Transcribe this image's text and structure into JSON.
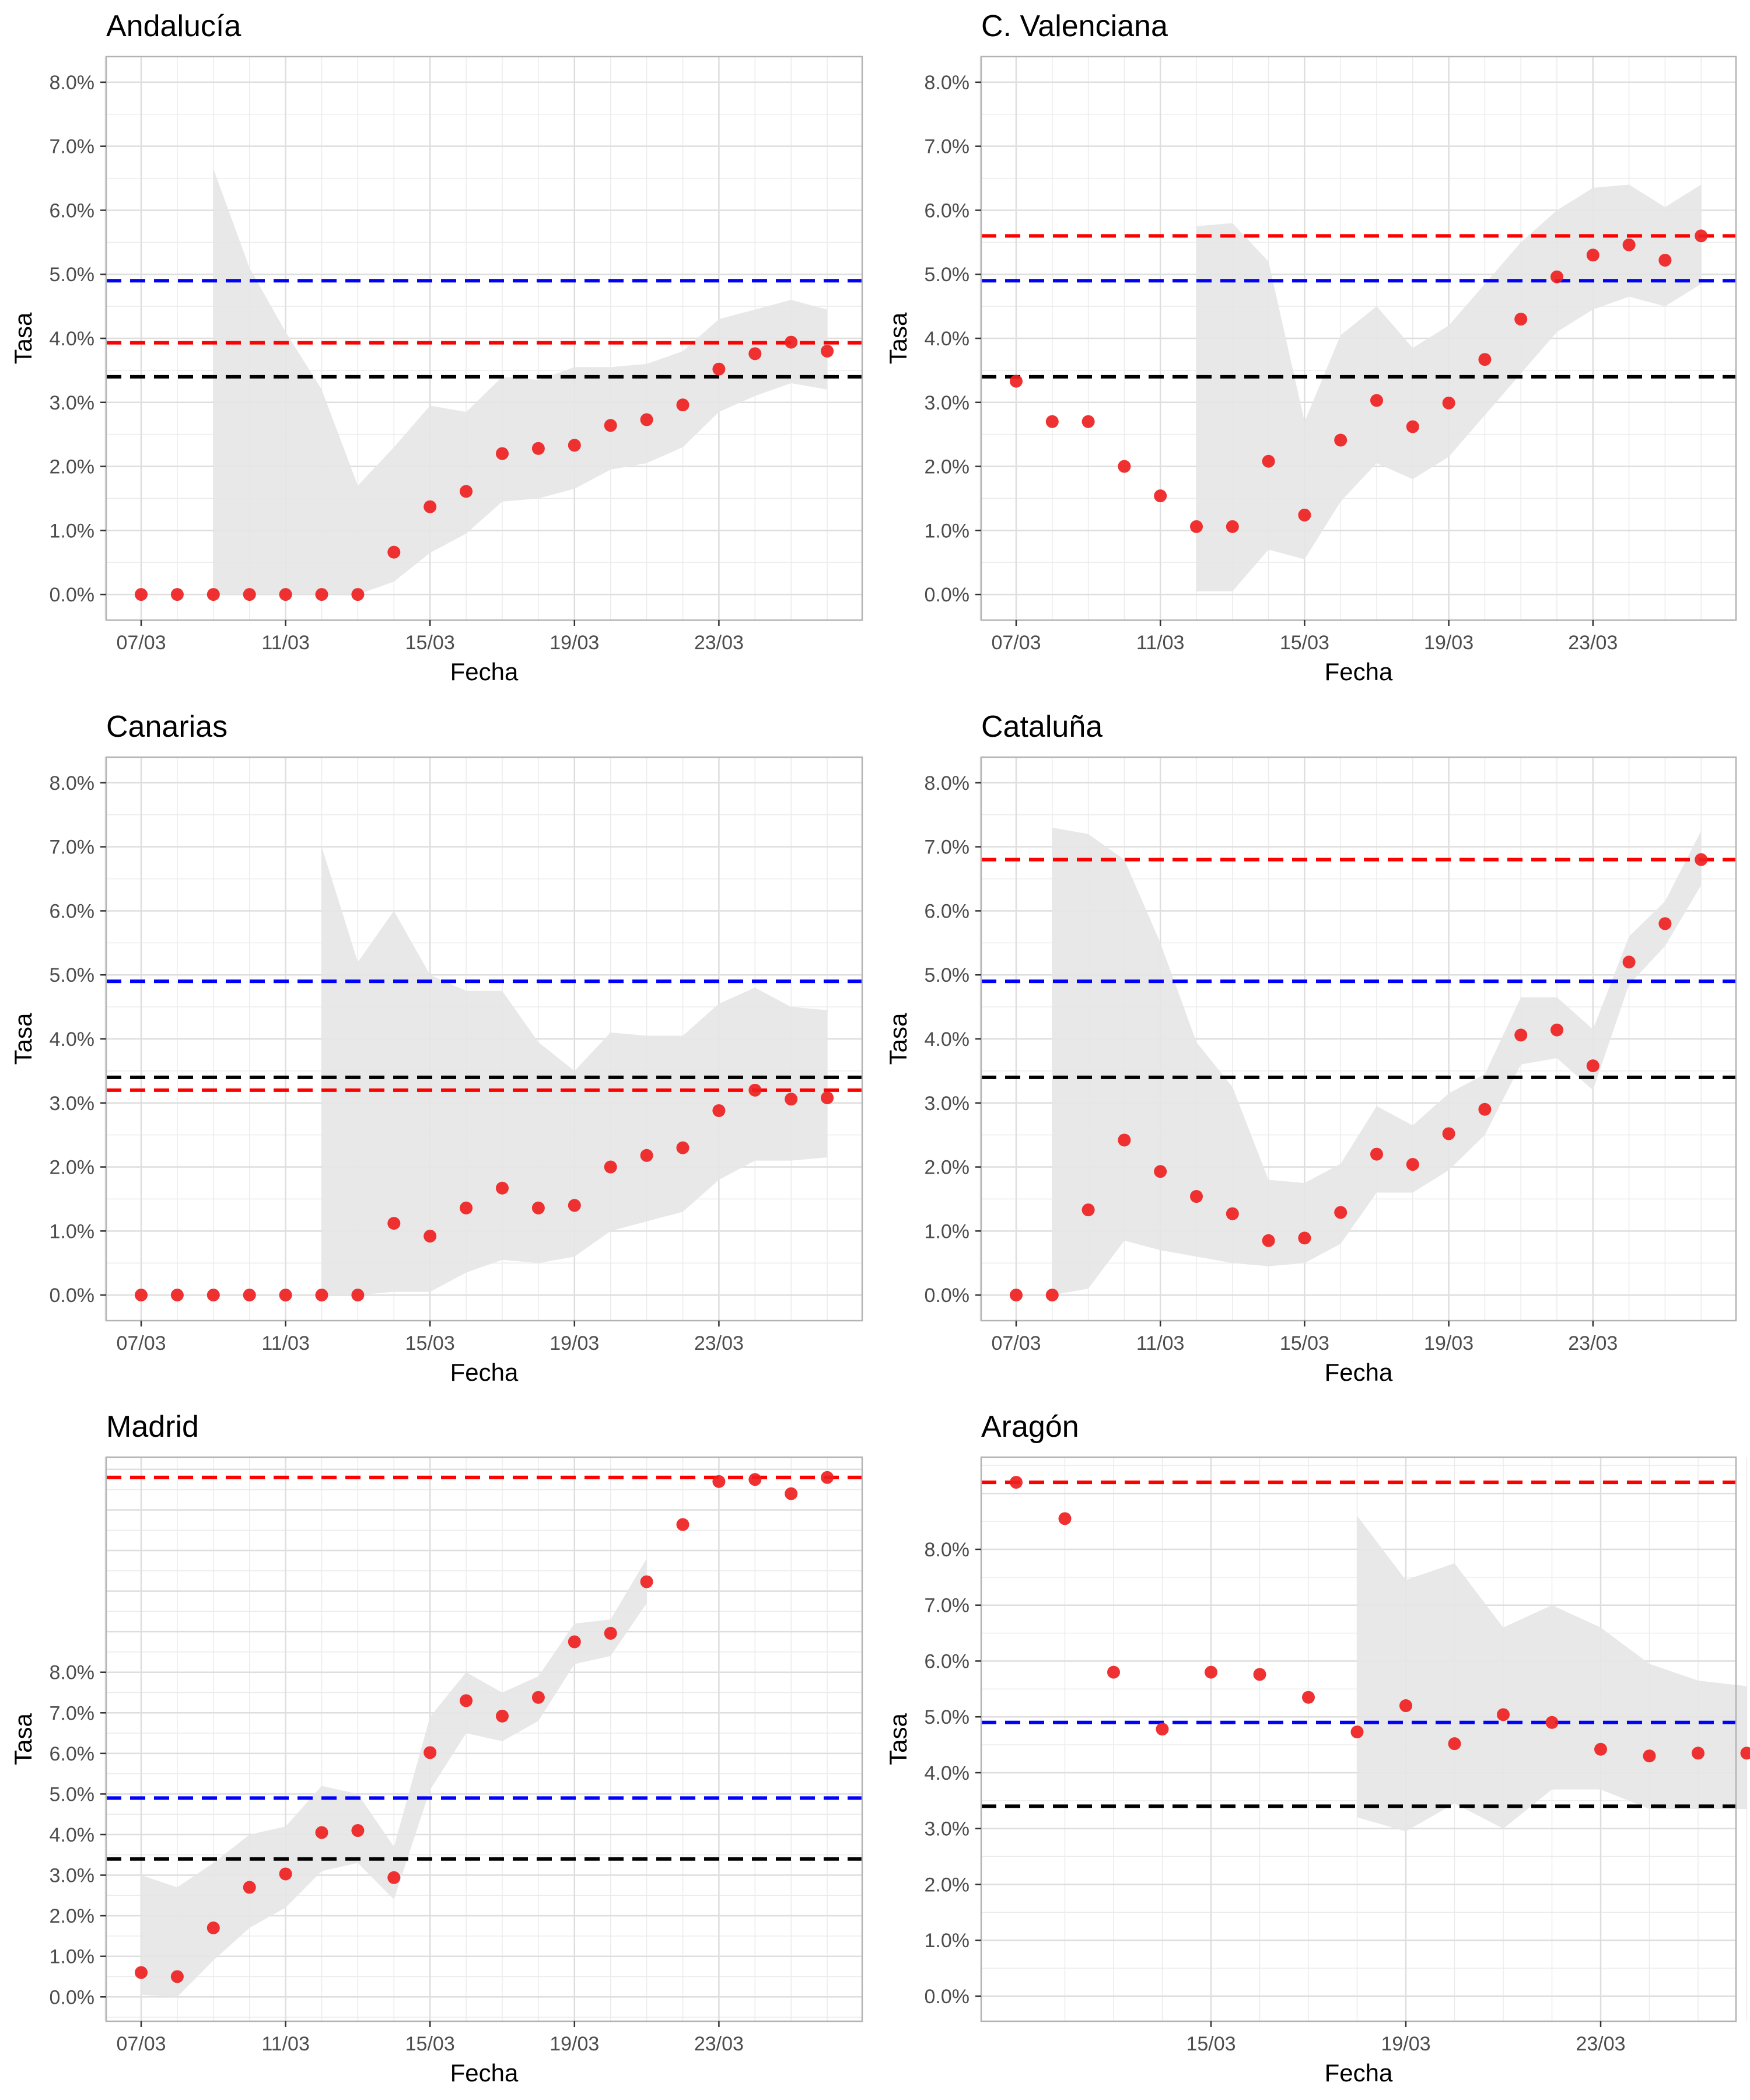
{
  "colors": {
    "reference_black": "#000000",
    "reference_blue": "#0000ff",
    "reference_red": "#ff0000",
    "points": "#ee2020",
    "band": "#e6e6e6",
    "grid": "#ebebeb",
    "panel_border": "#b3b3b3"
  },
  "reference_lines": {
    "black": 3.4,
    "blue": 4.9
  },
  "chart_data": [
    {
      "type": "scatter",
      "title": "Andalucía",
      "xlabel": "Fecha",
      "ylabel": "Tasa",
      "x_ticks": [
        "07/03",
        "11/03",
        "15/03",
        "19/03",
        "23/03"
      ],
      "y_ticks": [
        "0.0%",
        "1.0%",
        "2.0%",
        "3.0%",
        "4.0%",
        "5.0%",
        "6.0%",
        "7.0%",
        "8.0%"
      ],
      "ylim": [
        -0.4,
        8.4
      ],
      "grid": true,
      "region_rate": 3.93,
      "x_days": [
        7,
        8,
        9,
        10,
        11,
        12,
        13,
        14,
        15,
        16,
        17,
        18,
        19,
        20,
        21,
        22,
        23,
        24,
        25,
        26
      ],
      "values": [
        0,
        0,
        0,
        0,
        0,
        0,
        0,
        0.66,
        1.37,
        1.61,
        2.2,
        2.28,
        2.33,
        2.64,
        2.73,
        2.96,
        3.52,
        3.76,
        3.94,
        3.8
      ],
      "band": {
        "x_days": [
          9,
          10,
          11,
          12,
          13,
          14,
          15,
          16,
          17,
          18,
          19,
          20,
          21,
          22,
          23,
          24,
          25,
          26
        ],
        "upper": [
          6.65,
          5.1,
          4.1,
          3.2,
          1.7,
          2.3,
          2.95,
          2.85,
          3.4,
          3.35,
          3.55,
          3.55,
          3.6,
          3.8,
          4.3,
          4.45,
          4.6,
          4.45
        ],
        "lower": [
          0,
          0,
          0,
          0,
          0,
          0.2,
          0.65,
          0.95,
          1.45,
          1.5,
          1.65,
          1.95,
          2.05,
          2.3,
          2.85,
          3.1,
          3.3,
          3.2
        ]
      }
    },
    {
      "type": "scatter",
      "title": "C. Valenciana",
      "xlabel": "Fecha",
      "ylabel": "Tasa",
      "x_ticks": [
        "07/03",
        "11/03",
        "15/03",
        "19/03",
        "23/03"
      ],
      "y_ticks": [
        "0.0%",
        "1.0%",
        "2.0%",
        "3.0%",
        "4.0%",
        "5.0%",
        "6.0%",
        "7.0%",
        "8.0%"
      ],
      "ylim": [
        -0.4,
        8.4
      ],
      "grid": true,
      "region_rate": 5.6,
      "x_days": [
        7,
        8,
        9,
        10,
        11,
        12,
        13,
        14,
        15,
        16,
        17,
        18,
        19,
        20,
        21,
        22,
        23,
        24,
        25,
        26
      ],
      "values": [
        3.33,
        2.7,
        2.7,
        2.0,
        1.54,
        1.06,
        1.06,
        2.08,
        1.24,
        2.41,
        3.03,
        2.62,
        2.99,
        3.67,
        4.3,
        4.96,
        5.3,
        5.46,
        5.22,
        5.6
      ],
      "band": {
        "x_days": [
          12,
          13,
          14,
          15,
          16,
          17,
          18,
          19,
          20,
          21,
          22,
          23,
          24,
          25,
          26
        ],
        "upper": [
          5.75,
          5.8,
          5.2,
          2.7,
          4.05,
          4.5,
          3.85,
          4.2,
          4.85,
          5.5,
          6.0,
          6.35,
          6.4,
          6.05,
          6.4
        ],
        "lower": [
          0.05,
          0.05,
          0.7,
          0.55,
          1.45,
          2.05,
          1.8,
          2.15,
          2.8,
          3.45,
          4.1,
          4.45,
          4.65,
          4.5,
          4.85
        ]
      }
    },
    {
      "type": "scatter",
      "title": "Canarias",
      "xlabel": "Fecha",
      "ylabel": "Tasa",
      "x_ticks": [
        "07/03",
        "11/03",
        "15/03",
        "19/03",
        "23/03"
      ],
      "y_ticks": [
        "0.0%",
        "1.0%",
        "2.0%",
        "3.0%",
        "4.0%",
        "5.0%",
        "6.0%",
        "7.0%",
        "8.0%"
      ],
      "ylim": [
        -0.4,
        8.4
      ],
      "grid": true,
      "region_rate": 3.2,
      "x_days": [
        7,
        8,
        9,
        10,
        11,
        12,
        13,
        14,
        15,
        16,
        17,
        18,
        19,
        20,
        21,
        22,
        23,
        24,
        25,
        26
      ],
      "values": [
        0,
        0,
        0,
        0,
        0,
        0,
        0,
        1.12,
        0.92,
        1.36,
        1.67,
        1.36,
        1.4,
        2.0,
        2.18,
        2.3,
        2.88,
        3.2,
        3.06,
        3.08
      ],
      "band": {
        "x_days": [
          12,
          13,
          14,
          15,
          16,
          17,
          18,
          19,
          20,
          21,
          22,
          23,
          24,
          25,
          26
        ],
        "upper": [
          7.0,
          5.2,
          6.0,
          5.0,
          4.75,
          4.75,
          3.95,
          3.5,
          4.1,
          4.05,
          4.05,
          4.55,
          4.8,
          4.5,
          4.45
        ],
        "lower": [
          0,
          0,
          0.05,
          0.05,
          0.35,
          0.55,
          0.5,
          0.6,
          1.0,
          1.15,
          1.3,
          1.8,
          2.1,
          2.1,
          2.15
        ]
      }
    },
    {
      "type": "scatter",
      "title": "Cataluña",
      "xlabel": "Fecha",
      "ylabel": "Tasa",
      "x_ticks": [
        "07/03",
        "11/03",
        "15/03",
        "19/03",
        "23/03"
      ],
      "y_ticks": [
        "0.0%",
        "1.0%",
        "2.0%",
        "3.0%",
        "4.0%",
        "5.0%",
        "6.0%",
        "7.0%",
        "8.0%"
      ],
      "ylim": [
        -0.4,
        8.4
      ],
      "grid": true,
      "region_rate": 6.8,
      "x_days": [
        7,
        8,
        9,
        10,
        11,
        12,
        13,
        14,
        15,
        16,
        17,
        18,
        19,
        20,
        21,
        22,
        23,
        24,
        25,
        26
      ],
      "values": [
        0,
        0,
        1.33,
        2.42,
        1.93,
        1.54,
        1.27,
        0.85,
        0.89,
        1.29,
        2.2,
        2.04,
        2.52,
        2.9,
        4.06,
        4.14,
        3.58,
        5.2,
        5.8,
        6.8
      ],
      "band": {
        "x_days": [
          8,
          9,
          10,
          11,
          12,
          13,
          14,
          15,
          16,
          17,
          18,
          19,
          20,
          21,
          22,
          23,
          24,
          25,
          26
        ],
        "upper": [
          7.3,
          7.2,
          6.8,
          5.5,
          3.95,
          3.25,
          1.8,
          1.75,
          2.05,
          2.95,
          2.65,
          3.15,
          3.45,
          4.65,
          4.65,
          4.15,
          5.6,
          6.15,
          7.25
        ],
        "lower": [
          0,
          0.1,
          0.85,
          0.7,
          0.6,
          0.5,
          0.45,
          0.5,
          0.8,
          1.6,
          1.6,
          1.95,
          2.5,
          3.6,
          3.7,
          3.2,
          4.85,
          5.45,
          6.4
        ]
      }
    },
    {
      "type": "scatter",
      "title": "Madrid",
      "xlabel": "Fecha",
      "ylabel": "Tasa",
      "x_ticks": [
        "07/03",
        "11/03",
        "15/03",
        "19/03",
        "23/03"
      ],
      "y_ticks": [
        "0.0%",
        "1.0%",
        "2.0%",
        "3.0%",
        "4.0%",
        "5.0%",
        "6.0%",
        "7.0%",
        "8.0%"
      ],
      "ylim": [
        -0.6,
        13.3
      ],
      "grid": true,
      "region_rate": 12.8,
      "x_days": [
        7,
        8,
        9,
        10,
        11,
        12,
        13,
        14,
        15,
        16,
        17,
        18,
        19,
        20,
        21,
        22,
        23,
        24,
        25,
        26
      ],
      "values": [
        0.6,
        0.5,
        1.7,
        2.7,
        3.03,
        4.05,
        4.1,
        2.94,
        6.02,
        7.3,
        6.92,
        7.38,
        8.75,
        8.96,
        10.23,
        11.64,
        12.7,
        12.75,
        12.4,
        12.8
      ],
      "band": {
        "x_days": [
          7,
          8,
          9,
          10,
          11,
          12,
          13,
          14,
          15,
          16,
          17,
          18,
          19,
          20,
          21
        ],
        "upper": [
          3.0,
          2.7,
          3.3,
          4.0,
          4.2,
          5.2,
          5.0,
          3.7,
          6.9,
          8.0,
          7.5,
          7.9,
          9.2,
          9.3,
          10.8
        ],
        "lower": [
          0.05,
          0.0,
          0.9,
          1.7,
          2.2,
          3.1,
          3.3,
          2.4,
          5.1,
          6.5,
          6.3,
          6.8,
          8.2,
          8.4,
          9.7
        ]
      }
    },
    {
      "type": "scatter",
      "title": "Aragón",
      "xlabel": "Fecha",
      "ylabel": "Tasa",
      "x_ticks": [
        "15/03",
        "19/03",
        "23/03"
      ],
      "y_ticks": [
        "0.0%",
        "1.0%",
        "2.0%",
        "3.0%",
        "4.0%",
        "5.0%",
        "6.0%",
        "7.0%",
        "8.0%"
      ],
      "ylim": [
        -0.45,
        9.65
      ],
      "grid": true,
      "region_rate": 9.2,
      "x_days": [
        11,
        12,
        13,
        14,
        15,
        16,
        17,
        18,
        19,
        20,
        21,
        22,
        23,
        24,
        25,
        26
      ],
      "values": [
        9.2,
        8.55,
        5.8,
        4.78,
        5.8,
        5.76,
        5.35,
        4.73,
        5.2,
        4.52,
        5.04,
        4.9,
        4.42,
        4.3,
        4.35,
        4.35
      ],
      "band": {
        "x_days": [
          18,
          19,
          20,
          21,
          22,
          23,
          24,
          25,
          26
        ],
        "upper": [
          8.6,
          7.45,
          7.75,
          6.6,
          7.0,
          6.6,
          5.95,
          5.65,
          5.55
        ],
        "lower": [
          3.2,
          2.95,
          3.45,
          3.0,
          3.7,
          3.7,
          3.35,
          3.35,
          3.35
        ]
      }
    }
  ]
}
